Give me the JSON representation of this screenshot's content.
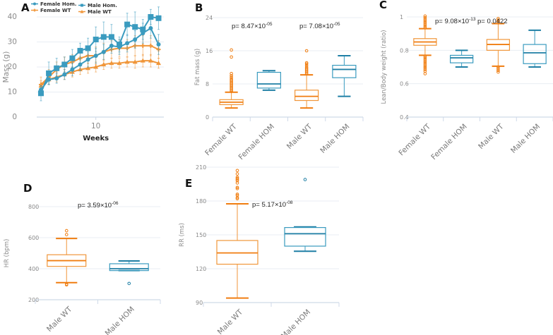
{
  "colors": {
    "wt": "#f0963a",
    "wt_dark": "#f07d10",
    "hom": "#3a9bbf",
    "hom_dark": "#1f7fa5"
  },
  "chart_data": [
    {
      "id": "A",
      "panel_label": "A",
      "type": "line",
      "title": "",
      "xlabel": "Weeks",
      "ylabel": "Mass (g)",
      "ylim": [
        0,
        40
      ],
      "yticks": [
        "0",
        "10",
        "20",
        "30",
        "40"
      ],
      "xticks": [
        "10"
      ],
      "x": [
        3,
        4,
        5,
        6,
        7,
        8,
        9,
        10,
        11,
        12,
        13,
        14,
        15,
        16,
        17,
        18
      ],
      "legend_position": "top-left",
      "grid": true,
      "series": [
        {
          "name": "Female Hom.",
          "marker": "circle",
          "color": "hom",
          "values": [
            11,
            15,
            15.5,
            17,
            19,
            21,
            23,
            24.5,
            26,
            28.5,
            28,
            29.5,
            31,
            33.5,
            35.5,
            29
          ],
          "error": [
            1.5,
            2,
            2,
            2,
            2.5,
            2.5,
            3,
            3,
            3,
            3,
            3,
            3.5,
            3.5,
            4,
            4,
            4
          ]
        },
        {
          "name": "Male Hom.",
          "marker": "square",
          "color": "hom",
          "values": [
            9.5,
            17.5,
            19.5,
            21,
            23.5,
            26.5,
            27.5,
            31,
            32,
            32,
            29,
            37,
            36,
            35,
            40,
            39.5
          ],
          "error": [
            3,
            4.5,
            4,
            3,
            3.5,
            3,
            4,
            5,
            6,
            5,
            3,
            4.5,
            6,
            4,
            3,
            4.5
          ]
        },
        {
          "name": "Female WT",
          "marker": "plus",
          "color": "wt",
          "values": [
            13,
            16,
            19,
            21,
            22,
            23.5,
            24.5,
            24.5,
            26,
            27,
            27.5,
            27.5,
            28.5,
            28.5,
            28.5,
            27
          ],
          "error": [
            3,
            3,
            3,
            3,
            3,
            3,
            3,
            3.5,
            3.5,
            3.5,
            3.5,
            3.5,
            4,
            4,
            4,
            3.5
          ]
        },
        {
          "name": "Male WT",
          "marker": "triangle",
          "color": "wt",
          "values": [
            12.5,
            15,
            16,
            17,
            18,
            19,
            19.5,
            20,
            21,
            21.5,
            21.5,
            22,
            22,
            22.5,
            22.5,
            21.5
          ],
          "error": [
            2,
            2,
            2,
            2,
            2,
            2,
            2,
            2,
            2,
            2,
            2,
            2,
            2.5,
            2.5,
            2.5,
            2
          ]
        }
      ]
    },
    {
      "id": "B",
      "panel_label": "B",
      "type": "box",
      "ylabel": "Fat mass (g)",
      "ylim": [
        0,
        24
      ],
      "yticks": [
        "0",
        "8",
        "16",
        "24"
      ],
      "categories": [
        "Female WT",
        "Female HOM",
        "Male WT",
        "Male HOM"
      ],
      "annotations": [
        {
          "text": "p= 8.47×10",
          "exp": "-05"
        },
        {
          "text": "p= 7.08×10",
          "exp": "-05"
        }
      ],
      "boxes": [
        {
          "group": "wt",
          "min": 2.2,
          "q1": 3.0,
          "median": 3.6,
          "q3": 4.2,
          "max": 6.0,
          "outliers": [
            6.2,
            6.5,
            6.8,
            7.1,
            7.4,
            7.7,
            8.0,
            8.3,
            8.6,
            8.9,
            9.2,
            9.6,
            10.0,
            10.5,
            14.5,
            16.2
          ]
        },
        {
          "group": "hom",
          "min": 6.5,
          "q1": 7.0,
          "median": 8.0,
          "q3": 10.8,
          "max": 11.2,
          "outliers": []
        },
        {
          "group": "wt",
          "min": 2.2,
          "q1": 4.0,
          "median": 5.0,
          "q3": 6.5,
          "max": 10.2,
          "outliers": [
            10.5,
            10.8,
            11.1,
            11.4,
            11.7,
            12.0,
            12.4,
            12.8,
            13.1,
            16.0
          ]
        },
        {
          "group": "hom",
          "min": 5.0,
          "q1": 9.5,
          "median": 11.5,
          "q3": 12.5,
          "max": 14.8,
          "outliers": []
        }
      ]
    },
    {
      "id": "C",
      "panel_label": "C",
      "type": "box",
      "ylabel": "Lean/Body weight (ratio)",
      "ylim": [
        0.4,
        1.0
      ],
      "yticks": [
        "0.4",
        "0.6",
        "0.8",
        "1"
      ],
      "categories": [
        "Female WT",
        "Female HOM",
        "Male WT",
        "Male HOM"
      ],
      "annotations": [
        {
          "text": "p= 9.08×10",
          "exp": "-13"
        },
        {
          "text": "p= 0.0422",
          "exp": ""
        }
      ],
      "boxes": [
        {
          "group": "wt",
          "min": 0.77,
          "q1": 0.83,
          "median": 0.85,
          "q3": 0.87,
          "max": 0.93,
          "outliers": [
            0.935,
            0.945,
            0.955,
            0.965,
            0.975,
            0.985,
            0.995,
            1.005,
            0.765,
            0.755,
            0.745,
            0.735,
            0.725,
            0.715,
            0.705,
            0.695,
            0.685,
            0.675,
            0.66
          ]
        },
        {
          "group": "hom",
          "min": 0.7,
          "q1": 0.725,
          "median": 0.755,
          "q3": 0.77,
          "max": 0.8,
          "outliers": []
        },
        {
          "group": "wt",
          "min": 0.705,
          "q1": 0.8,
          "median": 0.835,
          "q3": 0.865,
          "max": 0.96,
          "outliers": [
            0.97,
            0.98,
            0.99,
            0.7,
            0.69,
            0.68,
            0.67
          ]
        },
        {
          "group": "hom",
          "min": 0.7,
          "q1": 0.72,
          "median": 0.785,
          "q3": 0.835,
          "max": 0.92,
          "outliers": []
        }
      ]
    },
    {
      "id": "D",
      "panel_label": "D",
      "type": "box",
      "ylabel": "HR (bpm)",
      "ylim": [
        200,
        800
      ],
      "yticks": [
        "200",
        "400",
        "600",
        "800"
      ],
      "categories": [
        "Male WT",
        "Male HOM"
      ],
      "annotations": [
        {
          "text": "p= 3.59×10",
          "exp": "-06"
        }
      ],
      "boxes": [
        {
          "group": "wt",
          "min": 310,
          "q1": 415,
          "median": 452,
          "q3": 490,
          "max": 595,
          "outliers": [
            296,
            300,
            620,
            645
          ]
        },
        {
          "group": "hom",
          "min": 388,
          "q1": 388,
          "median": 400,
          "q3": 432,
          "max": 450,
          "outliers": [
            305
          ]
        }
      ]
    },
    {
      "id": "E",
      "panel_label": "E",
      "type": "box",
      "ylabel": "RR (ms)",
      "ylim": [
        90,
        210
      ],
      "yticks": [
        "90",
        "120",
        "150",
        "180",
        "210"
      ],
      "categories": [
        "Male WT",
        "Male HOM"
      ],
      "annotations": [
        {
          "text": "p= 5.17×10",
          "exp": "-08"
        }
      ],
      "boxes": [
        {
          "group": "wt",
          "min": 94,
          "q1": 124,
          "median": 134,
          "q3": 145,
          "max": 177.5,
          "outliers": [
            182,
            183,
            185,
            186,
            191,
            192,
            196,
            198,
            199,
            200,
            201,
            204,
            207
          ]
        },
        {
          "group": "hom",
          "min": 135.5,
          "q1": 140,
          "median": 151,
          "q3": 156.5,
          "max": 157,
          "outliers": [
            199
          ]
        }
      ]
    }
  ]
}
